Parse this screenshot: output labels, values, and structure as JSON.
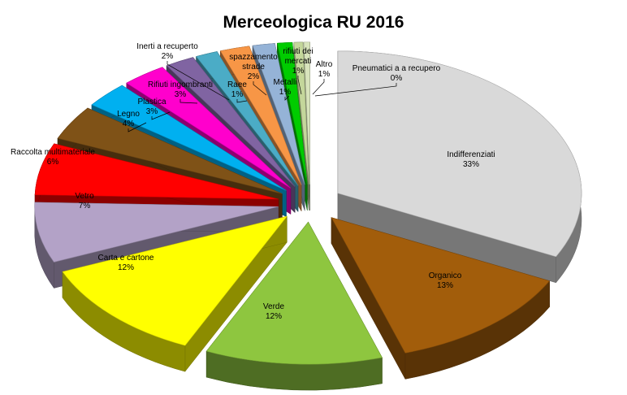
{
  "chart_data": {
    "type": "pie",
    "variant": "3d-exploded",
    "title": "Merceologica RU 2016",
    "slices": [
      {
        "label": "Indifferenziati",
        "pct_label": "33%",
        "value": 33,
        "color": "#d9d9d9"
      },
      {
        "label": "Organico",
        "pct_label": "13%",
        "value": 13,
        "color": "#a25d0b"
      },
      {
        "label": "Verde",
        "pct_label": "12%",
        "value": 12,
        "color": "#8ec63f"
      },
      {
        "label": "Carta e cartone",
        "pct_label": "12%",
        "value": 12,
        "color": "#ffff00"
      },
      {
        "label": "Vetro",
        "pct_label": "7%",
        "value": 7,
        "color": "#b3a2c7"
      },
      {
        "label": "Raccolta multimateriale",
        "pct_label": "6%",
        "value": 6,
        "color": "#ff0000"
      },
      {
        "label": "Legno",
        "pct_label": "4%",
        "value": 4,
        "color": "#7f5217"
      },
      {
        "label": "Plastica",
        "pct_label": "3%",
        "value": 3,
        "color": "#00b0f0"
      },
      {
        "label": "Rifiuti ingombranti",
        "pct_label": "3%",
        "value": 3,
        "color": "#ff00cc"
      },
      {
        "label": "Inerti a recuperto",
        "pct_label": "2%",
        "value": 2,
        "color": "#8064a2"
      },
      {
        "label": "Raee",
        "pct_label": "1%",
        "value": 1.5,
        "color": "#4bacc6"
      },
      {
        "label": "spazzamento strade",
        "pct_label": "2%",
        "value": 2,
        "color": "#f79646"
      },
      {
        "label": "Metalli",
        "pct_label": "1%",
        "value": 1.5,
        "color": "#95b3d7"
      },
      {
        "label": "rifiuti dei mercati",
        "pct_label": "1%",
        "value": 1,
        "color": "#00cc00"
      },
      {
        "label": "Altro",
        "pct_label": "1%",
        "value": 0.6,
        "color": "#c4d79b"
      },
      {
        "label": "Pneumatici a a recupero",
        "pct_label": "0%",
        "value": 0.4,
        "color": "#d8e4bc"
      }
    ]
  }
}
